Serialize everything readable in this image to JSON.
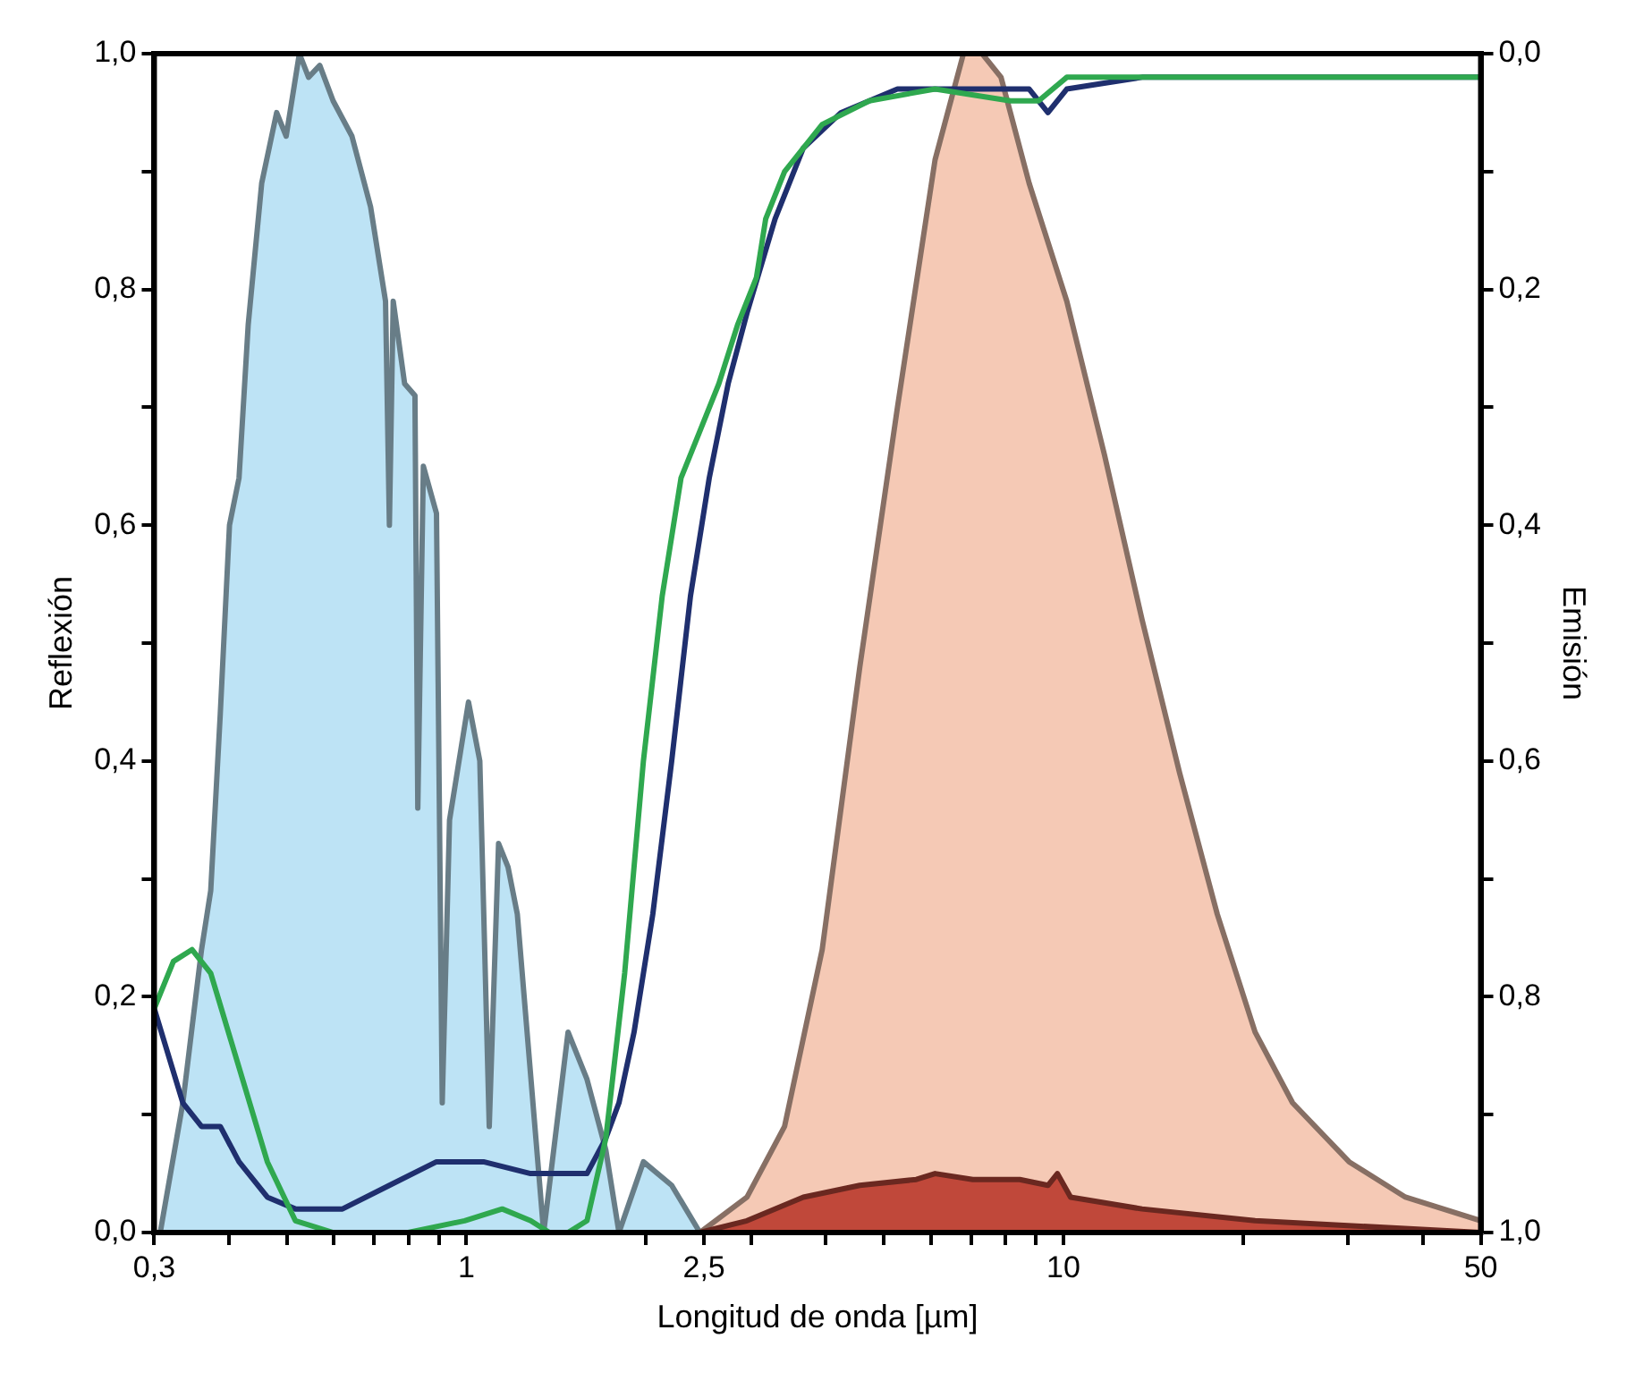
{
  "chart_data": {
    "type": "line",
    "xlabel": "Longitud de onda [µm]",
    "ylabel": "Reflexión",
    "y2label": "Emisión",
    "log": "x",
    "grid": false,
    "legend": false,
    "marker": "none",
    "line_style": "solid",
    "xlim": [
      0.3,
      50
    ],
    "xticks": [
      {
        "value": 0.3,
        "label": "0,3"
      },
      {
        "value": 0.4,
        "label": null
      },
      {
        "value": 0.5,
        "label": null
      },
      {
        "value": 0.6,
        "label": null
      },
      {
        "value": 0.7,
        "label": null
      },
      {
        "value": 0.8,
        "label": null
      },
      {
        "value": 0.9,
        "label": null
      },
      1,
      {
        "value": 2,
        "label": null
      },
      {
        "value": 2.5,
        "label": "2,5"
      },
      {
        "value": 3,
        "label": null
      },
      {
        "value": 4,
        "label": null
      },
      {
        "value": 5,
        "label": null
      },
      {
        "value": 6,
        "label": null
      },
      {
        "value": 7,
        "label": null
      },
      {
        "value": 8,
        "label": null
      },
      {
        "value": 9,
        "label": null
      },
      10,
      {
        "value": 20,
        "label": null
      },
      {
        "value": 30,
        "label": null
      },
      {
        "value": 40,
        "label": null
      },
      50
    ],
    "ylim": [
      0,
      1
    ],
    "yticks": [
      {
        "value": 0,
        "label": "0,0"
      },
      {
        "value": 0.1,
        "label": null
      },
      {
        "value": 0.2,
        "label": "0,2"
      },
      {
        "value": 0.3,
        "label": null
      },
      {
        "value": 0.4,
        "label": "0,4"
      },
      {
        "value": 0.5,
        "label": null
      },
      {
        "value": 0.6,
        "label": "0,6"
      },
      {
        "value": 0.7,
        "label": null
      },
      {
        "value": 0.8,
        "label": "0,8"
      },
      {
        "value": 0.9,
        "label": null
      },
      {
        "value": 1,
        "label": "1,0"
      }
    ],
    "y2lim": [
      1,
      0
    ],
    "y2ticks": [
      {
        "value": 0,
        "label": "0,0"
      },
      {
        "value": 0.1,
        "label": null
      },
      {
        "value": 0.2,
        "label": "0,2"
      },
      {
        "value": 0.3,
        "label": null
      },
      {
        "value": 0.4,
        "label": "0,4"
      },
      {
        "value": 0.5,
        "label": null
      },
      {
        "value": 0.6,
        "label": "0,6"
      },
      {
        "value": 0.7,
        "label": null
      },
      {
        "value": 0.8,
        "label": "0,8"
      },
      {
        "value": 0.9,
        "label": null
      },
      {
        "value": 1,
        "label": "1,0"
      }
    ],
    "series": [
      {
        "type": "area",
        "color": "#bde3f5",
        "x": [
          0.307,
          0.335,
          0.36,
          0.373,
          0.387,
          0.401,
          0.416,
          0.431,
          0.454,
          0.481,
          0.499,
          0.525,
          0.544,
          0.568,
          0.598,
          0.643,
          0.691,
          0.732,
          0.743,
          0.754,
          0.788,
          0.82,
          0.829,
          0.847,
          0.891,
          0.911,
          0.937,
          0.979,
          1.008,
          1.053,
          1.092,
          1.132,
          1.174,
          1.217,
          1.347,
          1.48,
          1.592,
          1.712,
          1.801,
          1.979,
          2.207,
          2.461
        ],
        "values": [
          0,
          0.11,
          0.24,
          0.29,
          0.44,
          0.6,
          0.64,
          0.77,
          0.89,
          0.95,
          0.93,
          1.0,
          0.98,
          0.99,
          0.96,
          0.93,
          0.87,
          0.79,
          0.6,
          0.79,
          0.72,
          0.71,
          0.36,
          0.65,
          0.61,
          0.11,
          0.35,
          0.41,
          0.45,
          0.4,
          0.09,
          0.33,
          0.31,
          0.27,
          0,
          0.17,
          0.13,
          0.07,
          0,
          0.06,
          0.04,
          0
        ]
      },
      {
        "type": "area",
        "color": "#f5c9b5",
        "x": [
          2.461,
          2.951,
          3.411,
          3.944,
          4.56,
          5.272,
          6.095,
          6.8,
          7.308,
          7.86,
          8.762,
          10.13,
          11.71,
          13.54,
          15.65,
          18.1,
          20.94,
          24.2,
          30.09,
          37.4,
          50
        ],
        "values": [
          0,
          0.03,
          0.09,
          0.24,
          0.48,
          0.7,
          0.91,
          1.0,
          1.0,
          0.98,
          0.89,
          0.79,
          0.66,
          0.52,
          0.39,
          0.27,
          0.17,
          0.11,
          0.06,
          0.03,
          0.01
        ]
      },
      {
        "type": "area",
        "color": "#c0483a",
        "x": [
          2.461,
          2.951,
          3.667,
          4.56,
          5.67,
          6.095,
          7.05,
          8.45,
          9.42,
          9.77,
          10.28,
          13.54,
          20.94,
          50
        ],
        "values": [
          0,
          0.01,
          0.03,
          0.04,
          0.045,
          0.05,
          0.045,
          0.045,
          0.04,
          0.05,
          0.03,
          0.02,
          0.01,
          0
        ]
      },
      {
        "type": "line",
        "color": "#1f2f6e",
        "x": [
          0.3,
          0.335,
          0.36,
          0.387,
          0.416,
          0.464,
          0.517,
          0.62,
          0.743,
          0.891,
          1.068,
          1.281,
          1.428,
          1.592,
          1.712,
          1.801,
          1.909,
          2.052,
          2.207,
          2.373,
          2.551,
          2.744,
          2.951,
          3.289,
          3.667,
          4.241,
          5.272,
          7.308,
          8.762,
          9.42,
          10.13,
          13.54,
          18.1,
          50
        ],
        "values": [
          0.19,
          0.11,
          0.09,
          0.09,
          0.06,
          0.03,
          0.02,
          0.02,
          0.04,
          0.06,
          0.06,
          0.05,
          0.05,
          0.05,
          0.08,
          0.11,
          0.17,
          0.27,
          0.4,
          0.54,
          0.64,
          0.72,
          0.78,
          0.86,
          0.92,
          0.95,
          0.97,
          0.97,
          0.97,
          0.95,
          0.97,
          0.98,
          0.98,
          0.98
        ]
      },
      {
        "type": "line",
        "color": "#2fa84f",
        "x": [
          0.3,
          0.323,
          0.347,
          0.373,
          0.416,
          0.464,
          0.517,
          0.598,
          0.799,
          0.993,
          1.148,
          1.281,
          1.377,
          1.48,
          1.592,
          1.712,
          1.841,
          1.979,
          2.128,
          2.288,
          2.461,
          2.647,
          2.846,
          3.06,
          3.172,
          3.411,
          3.944,
          4.728,
          6.095,
          8.149,
          9.087,
          10.13,
          13.54,
          20.94,
          50
        ],
        "values": [
          0.19,
          0.23,
          0.24,
          0.22,
          0.14,
          0.06,
          0.01,
          0,
          0,
          0.01,
          0.02,
          0.01,
          0,
          0,
          0.01,
          0.08,
          0.22,
          0.4,
          0.54,
          0.64,
          0.68,
          0.72,
          0.77,
          0.81,
          0.86,
          0.9,
          0.94,
          0.96,
          0.97,
          0.96,
          0.96,
          0.98,
          0.98,
          0.98,
          0.98
        ]
      }
    ]
  }
}
